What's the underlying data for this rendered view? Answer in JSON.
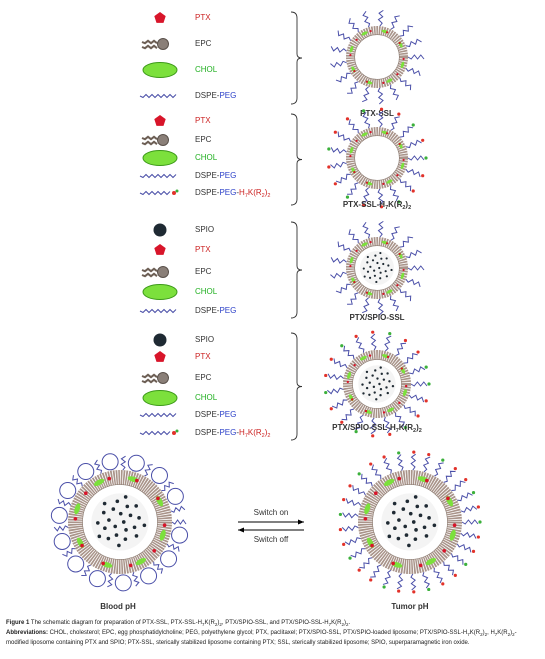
{
  "panels": [
    {
      "items": [
        [
          {
            "text": "PTX",
            "color": "#cc2222"
          }
        ],
        [
          "EPC"
        ],
        [
          {
            "text": "CHOL",
            "color": "#22b022"
          }
        ],
        [
          "DSPE-",
          {
            "text": "PEG",
            "color": "#2a3fc8"
          }
        ]
      ],
      "name": [
        "PTX-SSL"
      ]
    },
    {
      "items": [
        [
          {
            "text": "PTX",
            "color": "#cc2222"
          }
        ],
        [
          "EPC"
        ],
        [
          {
            "text": "CHOL",
            "color": "#22b022"
          }
        ],
        [
          "DSPE-",
          {
            "text": "PEG",
            "color": "#2a3fc8"
          }
        ],
        [
          "DSPE-",
          {
            "text": "PEG",
            "color": "#2a3fc8"
          },
          "-",
          {
            "text": "H",
            "color": "#cc2222"
          },
          {
            "text": "7",
            "sub": true,
            "color": "#cc2222"
          },
          {
            "text": "K(R",
            "color": "#cc2222"
          },
          {
            "text": "2",
            "sub": true,
            "color": "#cc2222"
          },
          {
            "text": ")",
            "color": "#cc2222"
          },
          {
            "text": "2",
            "sub": true,
            "color": "#cc2222"
          }
        ]
      ],
      "name": [
        "PTX-SSL-H",
        {
          "text": "7",
          "sub": true
        },
        "K(R",
        {
          "text": "2",
          "sub": true
        },
        ")",
        {
          "text": "2",
          "sub": true
        }
      ]
    },
    {
      "items": [
        [
          "SPIO"
        ],
        [
          {
            "text": "PTX",
            "color": "#cc2222"
          }
        ],
        [
          "EPC"
        ],
        [
          {
            "text": "CHOL",
            "color": "#22b022"
          }
        ],
        [
          "DSPE-",
          {
            "text": "PEG",
            "color": "#2a3fc8"
          }
        ]
      ],
      "name": [
        "PTX/SPIO-SSL"
      ]
    },
    {
      "items": [
        [
          "SPIO"
        ],
        [
          {
            "text": "PTX",
            "color": "#cc2222"
          }
        ],
        [
          "EPC"
        ],
        [
          {
            "text": "CHOL",
            "color": "#22b022"
          }
        ],
        [
          "DSPE-",
          {
            "text": "PEG",
            "color": "#2a3fc8"
          }
        ],
        [
          "DSPE-",
          {
            "text": "PEG",
            "color": "#2a3fc8"
          },
          "-",
          {
            "text": "H",
            "color": "#cc2222"
          },
          {
            "text": "7",
            "sub": true,
            "color": "#cc2222"
          },
          {
            "text": "K(R",
            "color": "#cc2222"
          },
          {
            "text": "2",
            "sub": true,
            "color": "#cc2222"
          },
          {
            "text": ")",
            "color": "#cc2222"
          },
          {
            "text": "2",
            "sub": true,
            "color": "#cc2222"
          }
        ]
      ],
      "name": [
        "PTX/SPIO-SSL-H",
        {
          "text": "7",
          "sub": true
        },
        "K(R",
        {
          "text": "2",
          "sub": true
        },
        ")",
        {
          "text": "2",
          "sub": true
        }
      ]
    }
  ],
  "switch": {
    "on": "Switch on",
    "off": "Switch off",
    "left": "Blood pH",
    "right": "Tumor pH"
  },
  "caption": {
    "figure": [
      {
        "text": "Figure 1",
        "bold": true
      },
      " The schematic diagram for preparation of PTX-SSL, PTX-SSL-H",
      {
        "text": "7",
        "sub": true
      },
      "K(R",
      {
        "text": "2",
        "sub": true
      },
      ")",
      {
        "text": "2",
        "sub": true
      },
      ", PTX/SPIO-SSL, and PTX/SPIO-SSL-H",
      {
        "text": "7",
        "sub": true
      },
      "K(R",
      {
        "text": "2",
        "sub": true
      },
      ")",
      {
        "text": "2",
        "sub": true
      },
      "."
    ],
    "abbreviations": [
      {
        "text": "Abbreviations:",
        "bold": true
      },
      " CHOL, cholesterol; EPC, egg phosphatidylcholine; PEG, polyethylene glycol; PTX, paclitaxel; PTX/SPIO-SSL, PTX/SPIO-loaded liposome; PTX/SPIO-SSL-H",
      {
        "text": "7",
        "sub": true
      },
      "K(R",
      {
        "text": "2",
        "sub": true
      },
      ")",
      {
        "text": "2",
        "sub": true
      },
      ", H",
      {
        "text": "7",
        "sub": true
      },
      "K(R",
      {
        "text": "2",
        "sub": true
      },
      ")",
      {
        "text": "2",
        "sub": true
      },
      "-modified liposome containing PTX and SPIO; PTX-SSL, sterically stabilized liposome containing PTX; SSL, sterically stabilized liposome; SPIO, superparamagnetic iron oxide."
    ]
  }
}
